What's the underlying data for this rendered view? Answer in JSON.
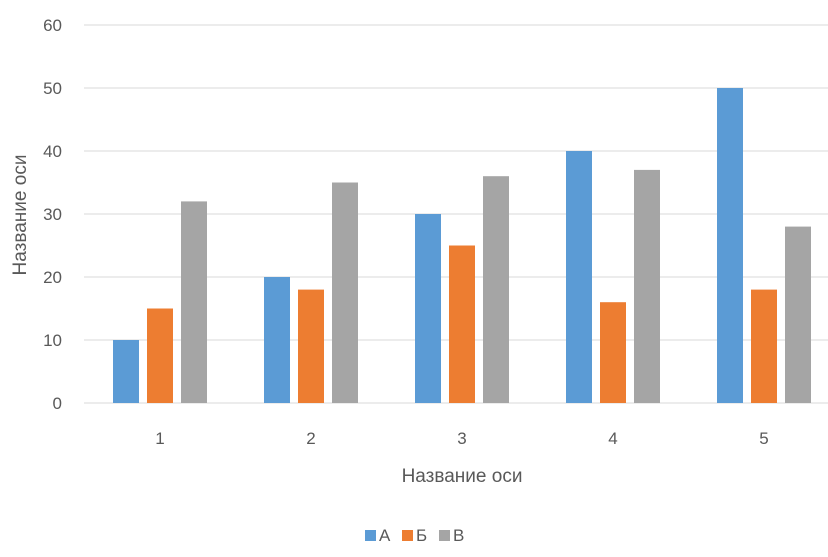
{
  "chart_data": {
    "type": "bar",
    "categories": [
      "1",
      "2",
      "3",
      "4",
      "5"
    ],
    "series": [
      {
        "name": "А",
        "values": [
          10,
          20,
          30,
          40,
          50
        ],
        "color": "#5b9bd5"
      },
      {
        "name": "Б",
        "values": [
          15,
          18,
          25,
          16,
          18
        ],
        "color": "#ed7d31"
      },
      {
        "name": "В",
        "values": [
          32,
          35,
          36,
          37,
          28
        ],
        "color": "#a5a5a5"
      }
    ],
    "title": "",
    "xlabel": "Название оси",
    "ylabel": "Название оси",
    "ylim": [
      0,
      60
    ],
    "yticks": [
      "0",
      "10",
      "20",
      "30",
      "40",
      "50",
      "60"
    ],
    "grid": true,
    "legend_position": "bottom"
  }
}
